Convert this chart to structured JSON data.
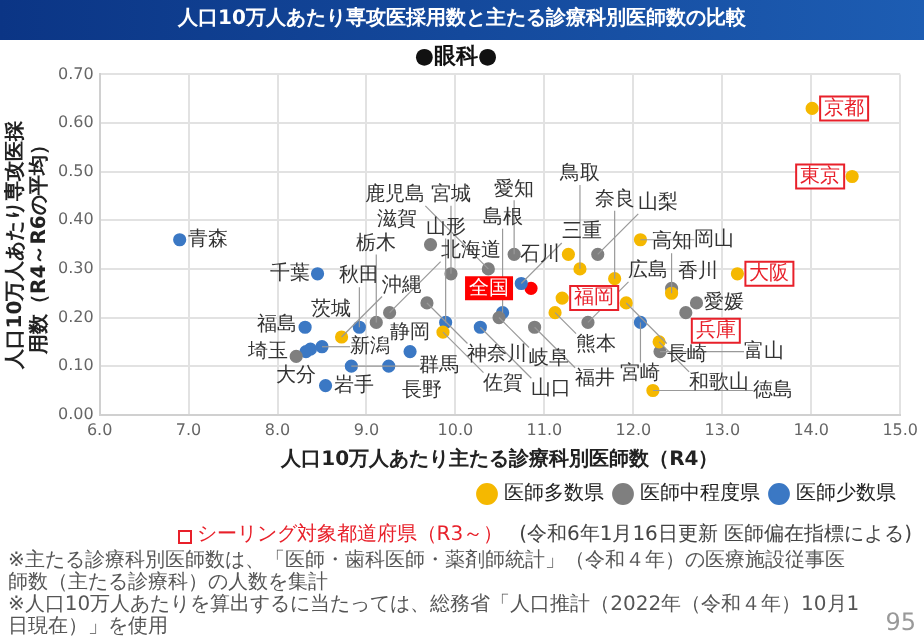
{
  "chart_data": {
    "type": "scatter",
    "title": "人口10万人あたり専攻医採用数と主たる診療科別医師数の比較",
    "subtitle": "●眼科●",
    "xlabel": "人口10万人あたり主たる診療科別医師数（R4）",
    "ylabel": "人口10万人あたり専攻医採用数（R4～R6の平均）",
    "xlim": [
      6,
      15
    ],
    "xticks": [
      {
        "value": 6,
        "label": "6.0"
      },
      {
        "value": 7,
        "label": "7.0"
      },
      {
        "value": 8,
        "label": "8.0"
      },
      {
        "value": 9,
        "label": "9.0"
      },
      {
        "value": 10,
        "label": "10.0"
      },
      {
        "value": 11,
        "label": "11.0"
      },
      {
        "value": 12,
        "label": "12.0"
      },
      {
        "value": 13,
        "label": "13.0"
      },
      {
        "value": 14,
        "label": "14.0"
      },
      {
        "value": 15,
        "label": "15.0"
      }
    ],
    "ylim": [
      0,
      0.7
    ],
    "yticks": [
      {
        "value": 0,
        "label": "0.00"
      },
      {
        "value": 0.1,
        "label": "0.10"
      },
      {
        "value": 0.2,
        "label": "0.20"
      },
      {
        "value": 0.3,
        "label": "0.30"
      },
      {
        "value": 0.4,
        "label": "0.40"
      },
      {
        "value": 0.5,
        "label": "0.50"
      },
      {
        "value": 0.6,
        "label": "0.60"
      },
      {
        "value": 0.7,
        "label": "0.70"
      }
    ],
    "grid": true,
    "legend": "bottom right",
    "marker": "circle",
    "series": [
      {
        "name": "医師多数県",
        "color": "#f5b800",
        "x": [
          12.08,
          11.27,
          11.4,
          11.79,
          11.12,
          11.92,
          12.43,
          12.29,
          12.22,
          8.72,
          9.86
        ],
        "values": [
          0.36,
          0.33,
          0.3,
          0.28,
          0.21,
          0.23,
          0.25,
          0.15,
          0.05,
          0.16,
          0.17
        ]
      },
      {
        "name": "医師中程度県",
        "color": "#7f7f7f",
        "x": [
          9.72,
          9.95,
          10.37,
          10.66,
          11.6,
          9.26,
          9.68,
          9.11,
          8.21,
          10.49,
          10.89,
          11.49,
          12.71,
          12.3,
          12.43
        ],
        "values": [
          0.35,
          0.29,
          0.3,
          0.33,
          0.33,
          0.21,
          0.23,
          0.19,
          0.12,
          0.2,
          0.18,
          0.19,
          0.23,
          0.13,
          0.26
        ]
      },
      {
        "name": "医師少数県",
        "color": "#3b78c4",
        "x": [
          6.9,
          8.45,
          8.31,
          8.92,
          8.37,
          8.32,
          8.5,
          8.83,
          9.25,
          9.49,
          8.54,
          9.89,
          10.28,
          10.74,
          10.53,
          12.08
        ],
        "values": [
          0.36,
          0.29,
          0.18,
          0.18,
          0.135,
          0.13,
          0.14,
          0.1,
          0.1,
          0.13,
          0.06,
          0.19,
          0.18,
          0.27,
          0.21,
          0.19
        ]
      },
      {
        "color": "#e8202a",
        "colors": [
          "#f5b800",
          "#f5b800",
          "#f5b800",
          "#f5b800",
          "#7f7f7f"
        ],
        "x": [
          14.01,
          14.46,
          13.17,
          11.2,
          12.59
        ],
        "values": [
          0.63,
          0.49,
          0.29,
          0.24,
          0.21
        ],
        "value_labels": [
          "京都",
          "東京",
          "大阪",
          "福岡",
          "兵庫"
        ]
      },
      {
        "color": "#ff0000",
        "x": [
          10.85
        ],
        "values": [
          0.26
        ],
        "value_labels": [
          "全国"
        ]
      }
    ],
    "annotations": [
      {
        "text": "福島",
        "x": 8.37,
        "y": 0.135
      },
      {
        "text": "埼玉",
        "x": 8.32,
        "y": 0.13
      },
      {
        "text": "大分",
        "x": 8.21,
        "y": 0.12
      },
      {
        "text": "新潟",
        "x": 8.5,
        "y": 0.14
      },
      {
        "text": "茨城",
        "x": 8.31,
        "y": 0.18
      },
      {
        "text": "岩手",
        "x": 8.54,
        "y": 0.06
      },
      {
        "text": "群馬",
        "x": 8.83,
        "y": 0.1
      },
      {
        "text": "沖縄",
        "x": 8.72,
        "y": 0.16
      },
      {
        "text": "秋田",
        "x": 8.92,
        "y": 0.18
      },
      {
        "text": "栃木",
        "x": 9.11,
        "y": 0.19
      },
      {
        "text": "北海道",
        "x": 9.26,
        "y": 0.21
      },
      {
        "text": "長野",
        "x": 9.25,
        "y": 0.1
      },
      {
        "text": "静岡",
        "x": 9.49,
        "y": 0.13
      },
      {
        "text": "神奈川",
        "x": 9.68,
        "y": 0.23
      },
      {
        "text": "佐賀",
        "x": 9.86,
        "y": 0.17
      },
      {
        "text": "山形",
        "x": 9.89,
        "y": 0.19
      },
      {
        "text": "山口",
        "x": 10.28,
        "y": 0.18
      },
      {
        "text": "岐阜",
        "x": 10.49,
        "y": 0.2
      },
      {
        "text": "島根",
        "x": 10.53,
        "y": 0.21
      },
      {
        "text": "三重",
        "x": 10.74,
        "y": 0.27
      },
      {
        "text": "福井",
        "x": 10.89,
        "y": 0.18
      },
      {
        "text": "熊本",
        "x": 11.12,
        "y": 0.21
      },
      {
        "text": "広島",
        "x": 11.49,
        "y": 0.19
      },
      {
        "text": "長崎",
        "x": 11.92,
        "y": 0.23
      },
      {
        "text": "宮崎",
        "x": 12.08,
        "y": 0.19
      },
      {
        "text": "香川",
        "x": 12.43,
        "y": 0.26
      },
      {
        "text": "高知",
        "x": 12.43,
        "y": 0.25
      },
      {
        "text": "愛媛",
        "x": 12.71,
        "y": 0.23
      },
      {
        "text": "和歌山",
        "x": 12.29,
        "y": 0.15
      },
      {
        "text": "富山",
        "x": 12.3,
        "y": 0.13
      },
      {
        "text": "徳島",
        "x": 12.22,
        "y": 0.05
      },
      {
        "text": "奈良",
        "x": 11.79,
        "y": 0.28
      },
      {
        "text": "鳥取",
        "x": 11.4,
        "y": 0.3
      },
      {
        "text": "石川",
        "x": 11.27,
        "y": 0.33
      },
      {
        "text": "山梨",
        "x": 11.6,
        "y": 0.33
      },
      {
        "text": "愛知",
        "x": 10.66,
        "y": 0.33
      },
      {
        "text": "鹿児島",
        "x": 10.37,
        "y": 0.3
      },
      {
        "text": "宮城",
        "x": 9.95,
        "y": 0.29
      },
      {
        "text": "滋賀",
        "x": 9.72,
        "y": 0.35
      },
      {
        "text": "岡山",
        "x": 12.08,
        "y": 0.36
      },
      {
        "text": "千葉",
        "x": 8.45,
        "y": 0.29
      },
      {
        "text": "青森",
        "x": 6.9,
        "y": 0.36
      },
      "(令和6年1月16日更新 医師偏在指標による)",
      "シーリング対象都道府県（R3～）",
      "※主たる診療科別医師数は、「医師・歯科医師・薬剤師統計」（令和４年）の医療施設従事医師数（主たる診療科）の人数を集計",
      "※人口10万人あたりを算出するに当たっては、総務省「人口推計（2022年（令和４年）10月1日現在）」を使用",
      "95"
    ]
  }
}
